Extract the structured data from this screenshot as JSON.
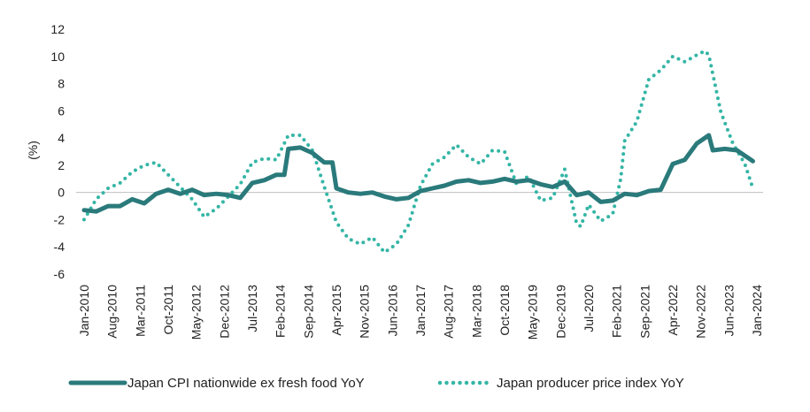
{
  "chart_data": {
    "type": "line",
    "title": "",
    "xlabel": "",
    "ylabel": "(%)",
    "ylim": [
      -6,
      12
    ],
    "yticks": [
      -6,
      -4,
      -2,
      0,
      2,
      4,
      6,
      8,
      10,
      12
    ],
    "x_start": "Jan-2010",
    "x_end": "Jan-2024",
    "grid": false,
    "legend_position": "bottom",
    "xtick_labels": [
      "Jan-2010",
      "Aug-2010",
      "Mar-2011",
      "Oct-2011",
      "May-2012",
      "Dec-2012",
      "Jul-2013",
      "Feb-2014",
      "Sep-2014",
      "Apr-2015",
      "Nov-2015",
      "Jun-2016",
      "Jan-2017",
      "Aug-2017",
      "Mar-2018",
      "Oct-2018",
      "May-2019",
      "Dec-2019",
      "Jul-2020",
      "Feb-2021",
      "Sep-2021",
      "Apr-2022",
      "Nov-2022",
      "Jun-2023",
      "Jan-2024"
    ],
    "series": [
      {
        "name": "Japan CPI nationwide ex fresh food YoY",
        "color": "#2a7a7b",
        "style": "solid",
        "points": [
          [
            "Jan-2010",
            -1.3
          ],
          [
            "Apr-2010",
            -1.4
          ],
          [
            "Jul-2010",
            -1.0
          ],
          [
            "Oct-2010",
            -1.0
          ],
          [
            "Jan-2011",
            -0.5
          ],
          [
            "Apr-2011",
            -0.8
          ],
          [
            "Jul-2011",
            -0.1
          ],
          [
            "Oct-2011",
            0.2
          ],
          [
            "Jan-2012",
            -0.1
          ],
          [
            "Apr-2012",
            0.2
          ],
          [
            "Jul-2012",
            -0.2
          ],
          [
            "Oct-2012",
            -0.1
          ],
          [
            "Jan-2013",
            -0.2
          ],
          [
            "Apr-2013",
            -0.4
          ],
          [
            "Jul-2013",
            0.7
          ],
          [
            "Oct-2013",
            0.9
          ],
          [
            "Jan-2014",
            1.3
          ],
          [
            "Mar-2014",
            1.3
          ],
          [
            "Apr-2014",
            3.2
          ],
          [
            "Jul-2014",
            3.3
          ],
          [
            "Oct-2014",
            2.9
          ],
          [
            "Jan-2015",
            2.2
          ],
          [
            "Mar-2015",
            2.2
          ],
          [
            "Apr-2015",
            0.3
          ],
          [
            "Jul-2015",
            0.0
          ],
          [
            "Oct-2015",
            -0.1
          ],
          [
            "Jan-2016",
            0.0
          ],
          [
            "Apr-2016",
            -0.3
          ],
          [
            "Jul-2016",
            -0.5
          ],
          [
            "Oct-2016",
            -0.4
          ],
          [
            "Jan-2017",
            0.1
          ],
          [
            "Apr-2017",
            0.3
          ],
          [
            "Jul-2017",
            0.5
          ],
          [
            "Oct-2017",
            0.8
          ],
          [
            "Jan-2018",
            0.9
          ],
          [
            "Apr-2018",
            0.7
          ],
          [
            "Jul-2018",
            0.8
          ],
          [
            "Oct-2018",
            1.0
          ],
          [
            "Jan-2019",
            0.8
          ],
          [
            "Apr-2019",
            0.9
          ],
          [
            "Jul-2019",
            0.6
          ],
          [
            "Oct-2019",
            0.4
          ],
          [
            "Jan-2020",
            0.8
          ],
          [
            "Apr-2020",
            -0.2
          ],
          [
            "Jul-2020",
            0.0
          ],
          [
            "Oct-2020",
            -0.7
          ],
          [
            "Jan-2021",
            -0.6
          ],
          [
            "Apr-2021",
            -0.1
          ],
          [
            "Jul-2021",
            -0.2
          ],
          [
            "Oct-2021",
            0.1
          ],
          [
            "Jan-2022",
            0.2
          ],
          [
            "Apr-2022",
            2.1
          ],
          [
            "Jul-2022",
            2.4
          ],
          [
            "Oct-2022",
            3.6
          ],
          [
            "Jan-2023",
            4.2
          ],
          [
            "Feb-2023",
            3.1
          ],
          [
            "May-2023",
            3.2
          ],
          [
            "Aug-2023",
            3.1
          ],
          [
            "Nov-2023",
            2.5
          ],
          [
            "Dec-2023",
            2.3
          ]
        ]
      },
      {
        "name": "Japan producer price index YoY",
        "color": "#34b5a5",
        "style": "dotted",
        "points": [
          [
            "Jan-2010",
            -2.0
          ],
          [
            "Apr-2010",
            -0.5
          ],
          [
            "Jul-2010",
            0.3
          ],
          [
            "Oct-2010",
            0.7
          ],
          [
            "Jan-2011",
            1.5
          ],
          [
            "Apr-2011",
            2.0
          ],
          [
            "Jul-2011",
            2.2
          ],
          [
            "Oct-2011",
            1.3
          ],
          [
            "Jan-2012",
            0.4
          ],
          [
            "Apr-2012",
            -0.5
          ],
          [
            "Jul-2012",
            -1.8
          ],
          [
            "Oct-2012",
            -1.2
          ],
          [
            "Jan-2013",
            -0.3
          ],
          [
            "Apr-2013",
            0.6
          ],
          [
            "Jul-2013",
            2.2
          ],
          [
            "Oct-2013",
            2.5
          ],
          [
            "Jan-2014",
            2.4
          ],
          [
            "Apr-2014",
            4.2
          ],
          [
            "Jul-2014",
            4.2
          ],
          [
            "Oct-2014",
            3.1
          ],
          [
            "Jan-2015",
            0.4
          ],
          [
            "Apr-2015",
            -2.2
          ],
          [
            "Jul-2015",
            -3.4
          ],
          [
            "Oct-2015",
            -3.8
          ],
          [
            "Jan-2016",
            -3.3
          ],
          [
            "Apr-2016",
            -4.4
          ],
          [
            "Jul-2016",
            -3.8
          ],
          [
            "Oct-2016",
            -2.4
          ],
          [
            "Jan-2017",
            0.5
          ],
          [
            "Apr-2017",
            2.1
          ],
          [
            "Jul-2017",
            2.6
          ],
          [
            "Oct-2017",
            3.5
          ],
          [
            "Jan-2018",
            2.6
          ],
          [
            "Apr-2018",
            2.1
          ],
          [
            "Jul-2018",
            3.1
          ],
          [
            "Oct-2018",
            3.0
          ],
          [
            "Jan-2019",
            0.6
          ],
          [
            "Apr-2019",
            1.2
          ],
          [
            "Jul-2019",
            -0.6
          ],
          [
            "Oct-2019",
            -0.4
          ],
          [
            "Jan-2020",
            1.7
          ],
          [
            "Apr-2020",
            -2.3
          ],
          [
            "May-2020",
            -2.5
          ],
          [
            "Jul-2020",
            -0.9
          ],
          [
            "Oct-2020",
            -2.1
          ],
          [
            "Jan-2021",
            -1.6
          ],
          [
            "Mar-2021",
            1.0
          ],
          [
            "Apr-2021",
            3.8
          ],
          [
            "Jul-2021",
            5.2
          ],
          [
            "Oct-2021",
            8.3
          ],
          [
            "Jan-2022",
            9.0
          ],
          [
            "Apr-2022",
            10.0
          ],
          [
            "Jul-2022",
            9.6
          ],
          [
            "Oct-2022",
            10.1
          ],
          [
            "Dec-2022",
            10.4
          ],
          [
            "Jan-2023",
            10.1
          ],
          [
            "Apr-2023",
            5.9
          ],
          [
            "Jul-2023",
            3.6
          ],
          [
            "Oct-2023",
            2.1
          ],
          [
            "Dec-2023",
            0.3
          ]
        ]
      }
    ]
  }
}
